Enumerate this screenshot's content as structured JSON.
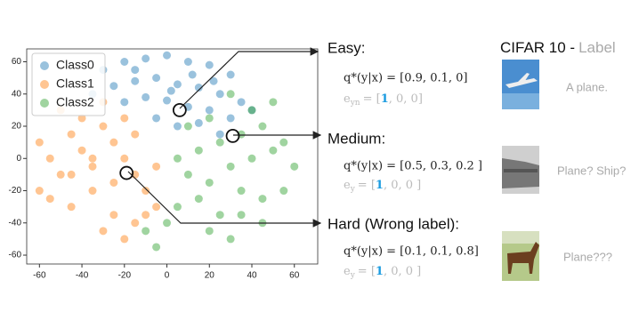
{
  "chart_data": {
    "type": "scatter",
    "xlim": [
      -66,
      71
    ],
    "ylim": [
      -65.5,
      68
    ],
    "xticks": [
      -60,
      -40,
      -20,
      0,
      20,
      40,
      60
    ],
    "yticks": [
      -60,
      -40,
      -20,
      0,
      20,
      40,
      60
    ],
    "legend": "upper left",
    "series": [
      {
        "name": "Class0",
        "color": "#1f77b4",
        "x": [
          -30,
          -20,
          -10,
          0,
          10,
          20,
          30,
          -25,
          -15,
          -5,
          5,
          15,
          25,
          35,
          -20,
          -10,
          0,
          10,
          20,
          30,
          -5,
          5,
          15,
          25,
          -35,
          40,
          -15,
          12,
          22,
          2
        ],
        "y": [
          55,
          60,
          62,
          64,
          60,
          58,
          52,
          45,
          48,
          50,
          46,
          44,
          40,
          35,
          35,
          38,
          36,
          32,
          30,
          25,
          25,
          20,
          22,
          15,
          40,
          30,
          55,
          52,
          48,
          42
        ]
      },
      {
        "name": "Class1",
        "color": "#ff7f0e",
        "x": [
          -60,
          -55,
          -50,
          -45,
          -40,
          -35,
          -30,
          -25,
          -20,
          -15,
          -10,
          -5,
          -55,
          -45,
          -35,
          -25,
          -15,
          -5,
          -50,
          -40,
          -30,
          -20,
          -10,
          -45,
          -35,
          -25,
          -15,
          -30,
          -20,
          -60
        ],
        "y": [
          10,
          0,
          -10,
          15,
          5,
          -5,
          20,
          10,
          0,
          -10,
          -20,
          -5,
          -25,
          -30,
          -20,
          -35,
          -40,
          -30,
          30,
          25,
          -45,
          -50,
          -35,
          -10,
          0,
          -15,
          15,
          35,
          25,
          -20
        ]
      },
      {
        "name": "Class2",
        "color": "#2ca02c",
        "x": [
          5,
          15,
          25,
          35,
          45,
          55,
          10,
          20,
          30,
          40,
          50,
          60,
          5,
          15,
          25,
          35,
          45,
          0,
          20,
          30,
          40,
          50,
          10,
          30,
          55,
          -10,
          -5,
          35,
          20,
          45
        ],
        "y": [
          0,
          5,
          10,
          15,
          20,
          10,
          -10,
          -15,
          -5,
          0,
          5,
          -5,
          -30,
          -25,
          -35,
          -20,
          -25,
          -40,
          -45,
          -50,
          30,
          35,
          20,
          40,
          -20,
          -45,
          -55,
          -35,
          25,
          -40
        ]
      }
    ],
    "highlights": {
      "x": [
        6,
        31,
        -19
      ],
      "y": [
        30,
        14,
        -9
      ]
    }
  },
  "annotations": [
    {
      "head": "Easy:",
      "q": "q*(y|x) = [0.9, 0.1, 0]",
      "e": "e",
      "e_sub": "yn",
      "e_eq": "= [",
      "e_hot": "1",
      "e_rest": ", 0, 0]"
    },
    {
      "head": "Medium:",
      "q": "q*(y|x) = [0.5, 0.3, 0.2 ]",
      "e": "e",
      "e_sub": "y",
      "e_eq": "= [",
      "e_hot": "1",
      "e_rest": ", 0, 0 ]"
    },
    {
      "head": "Hard (Wrong label):",
      "q": "q*(y|x) = [0.1, 0.1, 0.8]",
      "e": "e",
      "e_sub": "y",
      "e_eq": "= [",
      "e_hot": "1",
      "e_rest": ", 0, 0 ]"
    }
  ],
  "panel": {
    "title": "CIFAR 10 -",
    "title_label": "Label",
    "captions": [
      "A plane.",
      "Plane? Ship?",
      "Plane???"
    ]
  }
}
